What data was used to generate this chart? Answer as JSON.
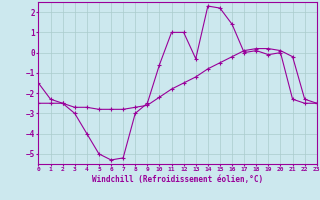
{
  "xlabel": "Windchill (Refroidissement éolien,°C)",
  "bg_color": "#cce8ee",
  "line_color": "#990099",
  "grid_color": "#aacccc",
  "x": [
    0,
    1,
    2,
    3,
    4,
    5,
    6,
    7,
    8,
    9,
    10,
    11,
    12,
    13,
    14,
    15,
    16,
    17,
    18,
    19,
    20,
    21,
    22,
    23
  ],
  "curve1": [
    -1.5,
    -2.3,
    -2.5,
    -3.0,
    -4.0,
    -5.0,
    -5.3,
    -5.2,
    -3.0,
    -2.5,
    -0.6,
    1.0,
    1.0,
    -0.3,
    2.3,
    2.2,
    1.4,
    0.0,
    0.1,
    -0.1,
    0.0,
    -2.3,
    -2.5,
    -2.5
  ],
  "curve2": [
    -2.5,
    -2.5,
    -2.5,
    -2.7,
    -2.7,
    -2.8,
    -2.8,
    -2.8,
    -2.7,
    -2.6,
    -2.2,
    -1.8,
    -1.5,
    -1.2,
    -0.8,
    -0.5,
    -0.2,
    0.1,
    0.2,
    0.2,
    0.1,
    -0.2,
    -2.3,
    -2.5
  ],
  "xlim": [
    0,
    23
  ],
  "ylim": [
    -5.5,
    2.5
  ],
  "yticks": [
    -5,
    -4,
    -3,
    -2,
    -1,
    0,
    1,
    2
  ],
  "xticks": [
    0,
    1,
    2,
    3,
    4,
    5,
    6,
    7,
    8,
    9,
    10,
    11,
    12,
    13,
    14,
    15,
    16,
    17,
    18,
    19,
    20,
    21,
    22,
    23
  ]
}
